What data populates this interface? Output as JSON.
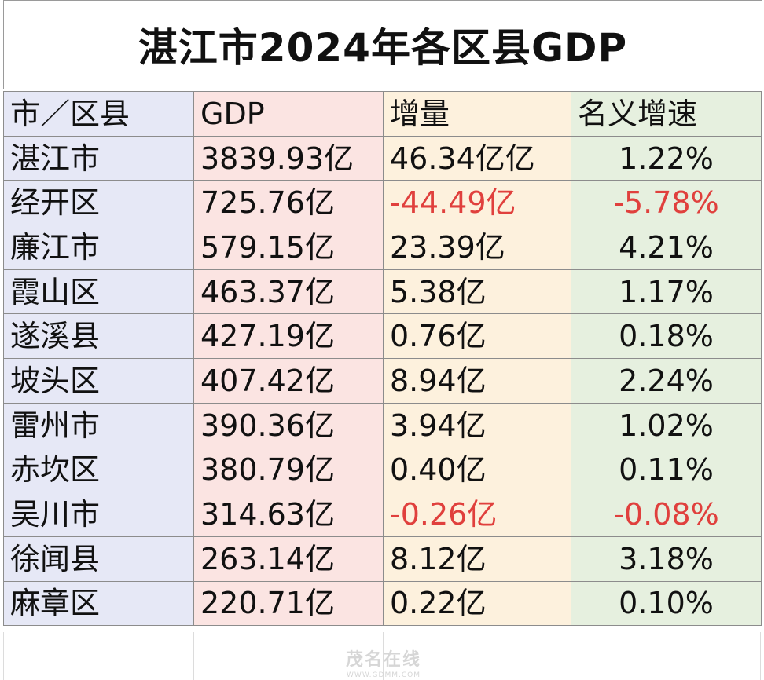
{
  "title": "湛江市2024年各区县GDP",
  "headers": [
    "市／区县",
    "GDP",
    "增量",
    "名义增速"
  ],
  "rows": [
    {
      "name": "湛江市",
      "gdp": "3839.93亿",
      "increase": "46.34亿亿",
      "growth": "1.22%",
      "negative": false
    },
    {
      "name": "经开区",
      "gdp": "725.76亿",
      "increase": "-44.49亿",
      "growth": "-5.78%",
      "negative": true
    },
    {
      "name": "廉江市",
      "gdp": "579.15亿",
      "increase": "23.39亿",
      "growth": "4.21%",
      "negative": false
    },
    {
      "name": "霞山区",
      "gdp": "463.37亿",
      "increase": "5.38亿",
      "growth": "1.17%",
      "negative": false
    },
    {
      "name": "遂溪县",
      "gdp": "427.19亿",
      "increase": "0.76亿",
      "growth": "0.18%",
      "negative": false
    },
    {
      "name": "坡头区",
      "gdp": "407.42亿",
      "increase": "8.94亿",
      "growth": "2.24%",
      "negative": false
    },
    {
      "name": "雷州市",
      "gdp": "390.36亿",
      "increase": "3.94亿",
      "growth": "1.02%",
      "negative": false
    },
    {
      "name": "赤坎区",
      "gdp": "380.79亿",
      "increase": "0.40亿",
      "growth": "0.11%",
      "negative": false
    },
    {
      "name": "吴川市",
      "gdp": "314.63亿",
      "increase": "-0.26亿",
      "growth": "-0.08%",
      "negative": true
    },
    {
      "name": "徐闻县",
      "gdp": "263.14亿",
      "increase": "8.12亿",
      "growth": "3.18%",
      "negative": false
    },
    {
      "name": "麻章区",
      "gdp": "220.71亿",
      "increase": "0.22亿",
      "growth": "0.10%",
      "negative": false
    }
  ],
  "colors": {
    "negative": "#e0403d",
    "col_region": "#e6e8f6",
    "col_gdp": "#fbe4e2",
    "col_increase": "#fdf1dd",
    "col_growth": "#e6f0df"
  },
  "watermark": {
    "logo": "茂名在线",
    "url": "WWW.GDMM.COM"
  }
}
